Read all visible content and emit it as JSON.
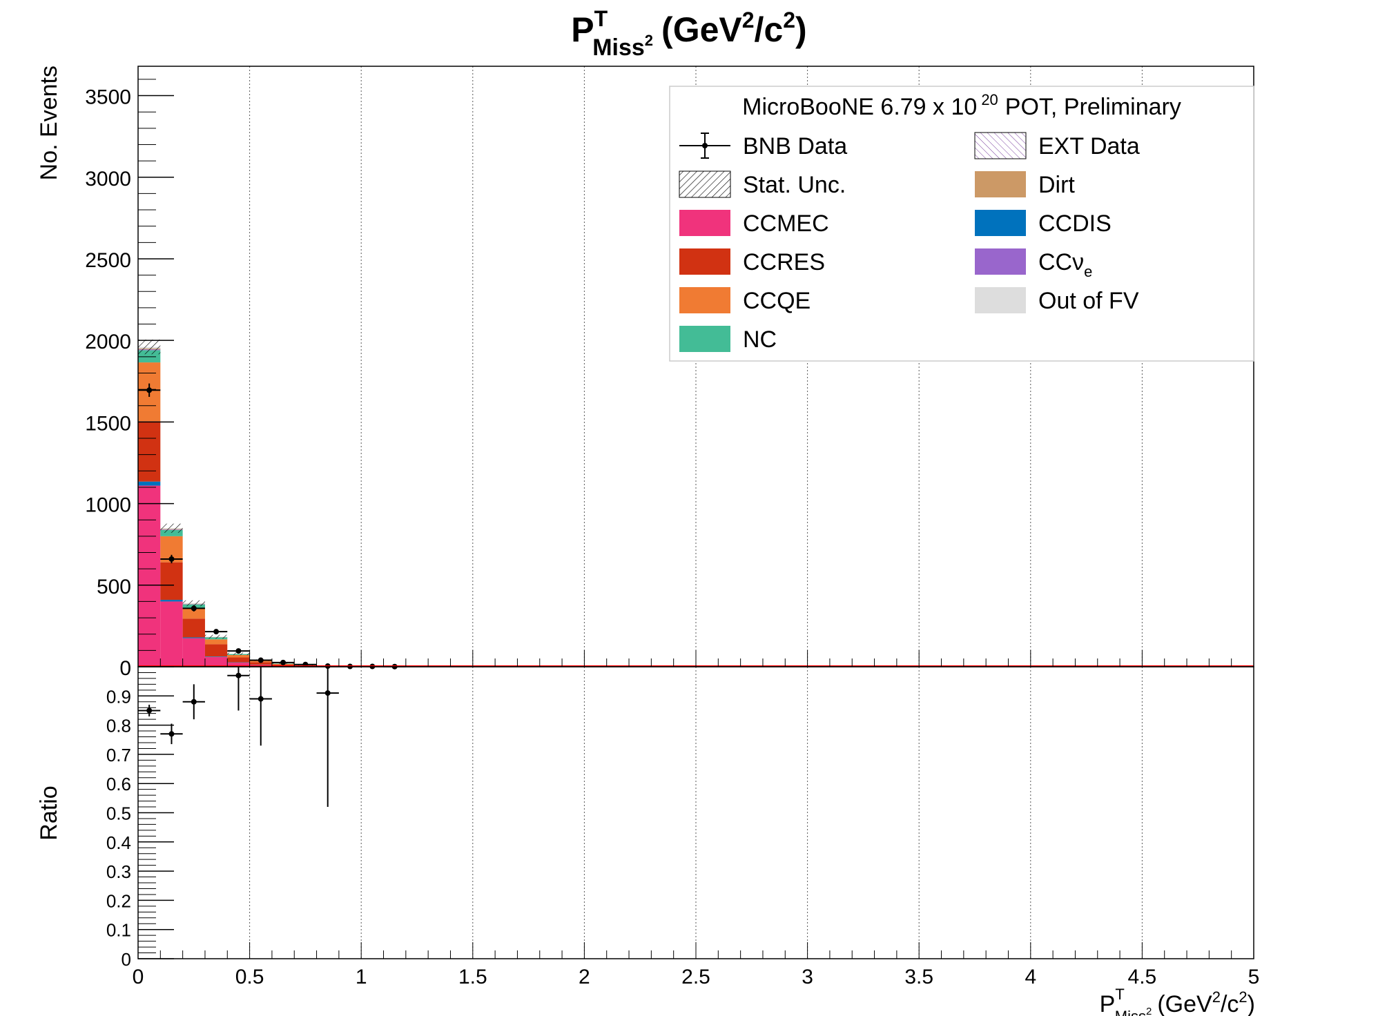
{
  "chart_data": [
    {
      "type": "bar",
      "stacked": true,
      "title": "P^T_Miss² (GeV²/c²)",
      "title_parts": {
        "base": "P",
        "sup": "T",
        "sub": "Miss",
        "subsup": "2",
        "unit_open": "(GeV",
        "unit_sup1": "2",
        "unit_mid": "/c",
        "unit_sup2": "2",
        "unit_close": ")"
      },
      "ylabel": "No. Events",
      "xlim": [
        0,
        5
      ],
      "ylim": [
        0,
        3680
      ],
      "y_ticks": [
        "0",
        "500",
        "1000",
        "1500",
        "2000",
        "2500",
        "3000",
        "3500"
      ],
      "y_tick_values": [
        0,
        500,
        1000,
        1500,
        2000,
        2500,
        3000,
        3500
      ],
      "grid": "vertical-dotted",
      "bin_edges": [
        0,
        0.1,
        0.2,
        0.3,
        0.4,
        0.5,
        0.6,
        0.7,
        0.8,
        0.9,
        1.0,
        1.1,
        1.2
      ],
      "series": [
        {
          "name": "CCMEC",
          "color": "#f0337c",
          "values": [
            1110,
            400,
            175,
            60,
            25,
            12,
            6,
            3,
            1,
            0,
            0,
            0
          ]
        },
        {
          "name": "CCDIS",
          "color": "#0072bd",
          "values": [
            25,
            10,
            5,
            3,
            2,
            1,
            0,
            0,
            0,
            0,
            0,
            0
          ]
        },
        {
          "name": "CCRES",
          "color": "#d13212",
          "values": [
            370,
            230,
            115,
            75,
            30,
            15,
            8,
            4,
            2,
            1,
            0,
            0
          ]
        },
        {
          "name": "CCQE",
          "color": "#f07b33",
          "values": [
            360,
            160,
            65,
            30,
            15,
            8,
            4,
            2,
            1,
            1,
            0,
            0
          ]
        },
        {
          "name": "NC",
          "color": "#43bc96",
          "values": [
            75,
            38,
            22,
            12,
            6,
            3,
            2,
            1,
            0,
            0,
            0,
            0
          ]
        },
        {
          "name": "CCνe",
          "color": "#9966cc",
          "values": [
            5,
            3,
            2,
            1,
            0,
            0,
            0,
            0,
            0,
            0,
            0,
            0
          ]
        },
        {
          "name": "Dirt",
          "color": "#cc9966",
          "values": [
            5,
            3,
            2,
            1,
            0,
            0,
            0,
            0,
            0,
            0,
            0,
            0
          ]
        },
        {
          "name": "Out of FV",
          "color": "#dddddd",
          "values": [
            10,
            5,
            3,
            2,
            1,
            1,
            0,
            0,
            0,
            0,
            0,
            0
          ]
        }
      ],
      "stat_unc": [
        45,
        28,
        18,
        12,
        8,
        5,
        3,
        2,
        1,
        1,
        1,
        1
      ],
      "data_points": {
        "name": "BNB Data",
        "x": [
          0.05,
          0.15,
          0.25,
          0.35,
          0.45,
          0.55,
          0.65,
          0.75,
          0.85,
          0.95,
          1.05,
          1.15
        ],
        "y": [
          1695,
          660,
          358,
          215,
          97,
          40,
          26,
          14,
          4,
          2,
          2,
          1
        ],
        "yerr": [
          41,
          26,
          19,
          15,
          10,
          6,
          5,
          4,
          2,
          1,
          1,
          1
        ]
      },
      "legend": {
        "placement": "top-right",
        "header": {
          "pre": "MicroBooNE 6.79 x 10",
          "sup": "20",
          "post": "POT, Preliminary"
        },
        "entries_left": [
          {
            "label": "BNB Data",
            "kind": "data"
          },
          {
            "label": "Stat. Unc.",
            "kind": "hatch"
          },
          {
            "label": "CCMEC",
            "kind": "fill",
            "color": "#f0337c"
          },
          {
            "label": "CCRES",
            "kind": "fill",
            "color": "#d13212"
          },
          {
            "label": "CCQE",
            "kind": "fill",
            "color": "#f07b33"
          },
          {
            "label": "NC",
            "kind": "fill",
            "color": "#43bc96"
          }
        ],
        "entries_right": [
          {
            "label": "EXT Data",
            "kind": "hatch-purple"
          },
          {
            "label": "Dirt",
            "kind": "fill",
            "color": "#cc9966"
          },
          {
            "label": "CCDIS",
            "kind": "fill",
            "color": "#0072bd"
          },
          {
            "label": "CCν",
            "sub": "e",
            "kind": "fill",
            "color": "#9966cc"
          },
          {
            "label": "Out of FV",
            "kind": "fill",
            "color": "#dddddd"
          }
        ]
      }
    },
    {
      "type": "scatter",
      "ylabel": "Ratio",
      "xlim": [
        0,
        5
      ],
      "ylim": [
        0,
        1
      ],
      "y_ticks": [
        "0",
        "0.1",
        "0.2",
        "0.3",
        "0.4",
        "0.5",
        "0.6",
        "0.7",
        "0.8",
        "0.9"
      ],
      "y_tick_values": [
        0,
        0.1,
        0.2,
        0.3,
        0.4,
        0.5,
        0.6,
        0.7,
        0.8,
        0.9
      ],
      "x_ticks": [
        "0",
        "0.5",
        "1",
        "1.5",
        "2",
        "2.5",
        "3",
        "3.5",
        "4",
        "4.5",
        "5"
      ],
      "x_tick_values": [
        0,
        0.5,
        1,
        1.5,
        2,
        2.5,
        3,
        3.5,
        4,
        4.5,
        5
      ],
      "xlabel": {
        "base": "P",
        "sup": "T",
        "sub": "Miss",
        "subsup": "2",
        "unit_open": "(GeV",
        "unit_sup1": "2",
        "unit_mid": "/c",
        "unit_sup2": "2",
        "unit_close": ")"
      },
      "x": [
        0.05,
        0.15,
        0.25,
        0.45,
        0.55,
        0.85
      ],
      "y": [
        0.85,
        0.77,
        0.88,
        0.97,
        0.89,
        0.91
      ],
      "yerr_low": [
        0.02,
        0.035,
        0.06,
        0.12,
        0.16,
        0.39
      ],
      "yerr_high": [
        0.02,
        0.035,
        0.06,
        0.12,
        0.16,
        0.39
      ],
      "reference_line": {
        "y": 1.0,
        "color": "#ff0000"
      }
    }
  ]
}
